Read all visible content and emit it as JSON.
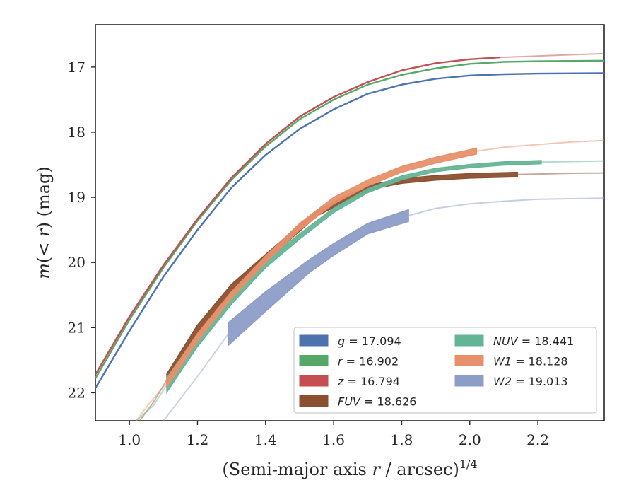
{
  "chart_data": {
    "type": "line",
    "xlabel": "(Semi-major axis r / arcsec)",
    "xlabel_sup": "1/4",
    "ylabel": "m(< r) (mag)",
    "xlim": [
      0.9,
      2.395
    ],
    "ylim": [
      22.43,
      16.35
    ],
    "y_inverted": true,
    "x_ticks": [
      1.0,
      1.2,
      1.4,
      1.6,
      1.8,
      2.0,
      2.2
    ],
    "x_tick_labels": [
      "1.0",
      "1.2",
      "1.4",
      "1.6",
      "1.8",
      "2.0",
      "2.2"
    ],
    "y_ticks": [
      17,
      18,
      19,
      20,
      21,
      22
    ],
    "y_tick_labels": [
      "17",
      "18",
      "19",
      "20",
      "21",
      "22"
    ],
    "legend_position": "lower-right",
    "series": [
      {
        "name": "g = 17.094",
        "sym": "g",
        "val": "17.094",
        "italic": false,
        "color": "#4c72b0",
        "band": false,
        "x_dark_end": 2.395,
        "points": [
          [
            0.9,
            21.93
          ],
          [
            1.0,
            21.05
          ],
          [
            1.1,
            20.22
          ],
          [
            1.2,
            19.5
          ],
          [
            1.3,
            18.85
          ],
          [
            1.4,
            18.35
          ],
          [
            1.5,
            17.95
          ],
          [
            1.6,
            17.65
          ],
          [
            1.7,
            17.41
          ],
          [
            1.8,
            17.27
          ],
          [
            1.9,
            17.18
          ],
          [
            2.0,
            17.13
          ],
          [
            2.1,
            17.11
          ],
          [
            2.2,
            17.1
          ],
          [
            2.395,
            17.094
          ]
        ]
      },
      {
        "name": "r = 16.902",
        "sym": "r",
        "val": "16.902",
        "italic": false,
        "color": "#55a868",
        "band": false,
        "x_dark_end": 2.395,
        "points": [
          [
            0.9,
            21.78
          ],
          [
            1.0,
            20.88
          ],
          [
            1.1,
            20.08
          ],
          [
            1.2,
            19.36
          ],
          [
            1.3,
            18.73
          ],
          [
            1.4,
            18.22
          ],
          [
            1.5,
            17.8
          ],
          [
            1.6,
            17.5
          ],
          [
            1.7,
            17.27
          ],
          [
            1.8,
            17.12
          ],
          [
            1.9,
            17.02
          ],
          [
            2.0,
            16.95
          ],
          [
            2.1,
            16.92
          ],
          [
            2.2,
            16.91
          ],
          [
            2.395,
            16.902
          ]
        ]
      },
      {
        "name": "z = 16.794",
        "sym": "z",
        "val": "16.794",
        "italic": false,
        "color": "#c44e52",
        "band": false,
        "x_dark_end": 2.09,
        "points": [
          [
            0.9,
            21.72
          ],
          [
            1.0,
            20.83
          ],
          [
            1.1,
            20.04
          ],
          [
            1.2,
            19.33
          ],
          [
            1.3,
            18.7
          ],
          [
            1.4,
            18.18
          ],
          [
            1.5,
            17.76
          ],
          [
            1.6,
            17.46
          ],
          [
            1.7,
            17.23
          ],
          [
            1.8,
            17.05
          ],
          [
            1.9,
            16.94
          ],
          [
            2.0,
            16.88
          ],
          [
            2.09,
            16.85
          ],
          [
            2.2,
            16.83
          ],
          [
            2.3,
            16.81
          ],
          [
            2.395,
            16.794
          ]
        ]
      },
      {
        "name": "FUV = 18.626",
        "sym": "FUV",
        "val": "18.626",
        "italic": true,
        "color": "#8c4f2f",
        "band": true,
        "x_dark_start": 1.11,
        "x_dark_end": 2.14,
        "points": [
          [
            1.11,
            21.8
          ],
          [
            1.2,
            21.05
          ],
          [
            1.3,
            20.4
          ],
          [
            1.45,
            19.7
          ],
          [
            1.55,
            19.25
          ],
          [
            1.65,
            18.98
          ],
          [
            1.72,
            18.83
          ],
          [
            1.8,
            18.75
          ],
          [
            1.9,
            18.7
          ],
          [
            2.0,
            18.67
          ],
          [
            2.14,
            18.65
          ],
          [
            2.3,
            18.63
          ],
          [
            2.395,
            18.626
          ]
        ],
        "thickness_mag": [
          0.18,
          0.18,
          0.13,
          0.1,
          0.08,
          0.08,
          0.07,
          0.07,
          0.07,
          0.07,
          0.07,
          0.0,
          0.0
        ]
      },
      {
        "name": "NUV = 18.441",
        "sym": "NUV",
        "val": "18.441",
        "italic": true,
        "color": "#64b596",
        "band": true,
        "x_dark_start": 1.11,
        "x_dark_end": 2.21,
        "points": [
          [
            1.11,
            21.88
          ],
          [
            1.2,
            21.2
          ],
          [
            1.3,
            20.57
          ],
          [
            1.4,
            20.03
          ],
          [
            1.5,
            19.6
          ],
          [
            1.6,
            19.2
          ],
          [
            1.7,
            18.9
          ],
          [
            1.8,
            18.7
          ],
          [
            1.9,
            18.58
          ],
          [
            2.0,
            18.52
          ],
          [
            2.1,
            18.48
          ],
          [
            2.21,
            18.46
          ],
          [
            2.395,
            18.441
          ]
        ],
        "thickness_mag": [
          0.22,
          0.18,
          0.14,
          0.1,
          0.08,
          0.07,
          0.06,
          0.06,
          0.05,
          0.05,
          0.05,
          0.05,
          0.0
        ]
      },
      {
        "name": "W1 = 18.128",
        "sym": "W1",
        "val": "18.128",
        "italic": true,
        "color": "#e8906b",
        "band": true,
        "x_dark_start": 1.11,
        "x_dark_end": 2.02,
        "points": [
          [
            1.11,
            21.85
          ],
          [
            1.2,
            21.15
          ],
          [
            1.3,
            20.5
          ],
          [
            1.4,
            19.95
          ],
          [
            1.5,
            19.45
          ],
          [
            1.6,
            19.05
          ],
          [
            1.7,
            18.78
          ],
          [
            1.8,
            18.57
          ],
          [
            1.9,
            18.43
          ],
          [
            2.02,
            18.29
          ],
          [
            2.1,
            18.23
          ],
          [
            2.2,
            18.19
          ],
          [
            2.3,
            18.15
          ],
          [
            2.395,
            18.128
          ]
        ],
        "thickness_mag": [
          0.12,
          0.12,
          0.1,
          0.1,
          0.1,
          0.1,
          0.09,
          0.09,
          0.09,
          0.09,
          0.0,
          0.0,
          0.0,
          0.0
        ]
      },
      {
        "name": "W2 = 19.013",
        "sym": "W2",
        "val": "19.013",
        "italic": true,
        "color": "#8c9dc7",
        "band": true,
        "x_dark_start": 1.29,
        "x_dark_end": 1.82,
        "points": [
          [
            1.29,
            21.1
          ],
          [
            1.4,
            20.6
          ],
          [
            1.53,
            20.05
          ],
          [
            1.6,
            19.8
          ],
          [
            1.7,
            19.48
          ],
          [
            1.82,
            19.28
          ],
          [
            1.9,
            19.17
          ],
          [
            2.0,
            19.1
          ],
          [
            2.1,
            19.06
          ],
          [
            2.2,
            19.03
          ],
          [
            2.395,
            19.013
          ]
        ],
        "thickness_mag": [
          0.35,
          0.3,
          0.2,
          0.18,
          0.16,
          0.18,
          0.0,
          0.0,
          0.0,
          0.0,
          0.0
        ]
      }
    ],
    "pre_band_tails": [
      {
        "series": 3,
        "points": [
          [
            1.03,
            22.43
          ],
          [
            1.07,
            22.15
          ],
          [
            1.11,
            21.8
          ]
        ]
      },
      {
        "series": 4,
        "points": [
          [
            1.02,
            22.43
          ],
          [
            1.07,
            22.2
          ],
          [
            1.11,
            21.88
          ]
        ]
      },
      {
        "series": 5,
        "points": [
          [
            1.02,
            22.43
          ],
          [
            1.06,
            22.15
          ],
          [
            1.11,
            21.85
          ]
        ]
      },
      {
        "series": 6,
        "points": [
          [
            1.1,
            22.43
          ],
          [
            1.2,
            21.75
          ],
          [
            1.29,
            21.1
          ]
        ]
      }
    ]
  }
}
